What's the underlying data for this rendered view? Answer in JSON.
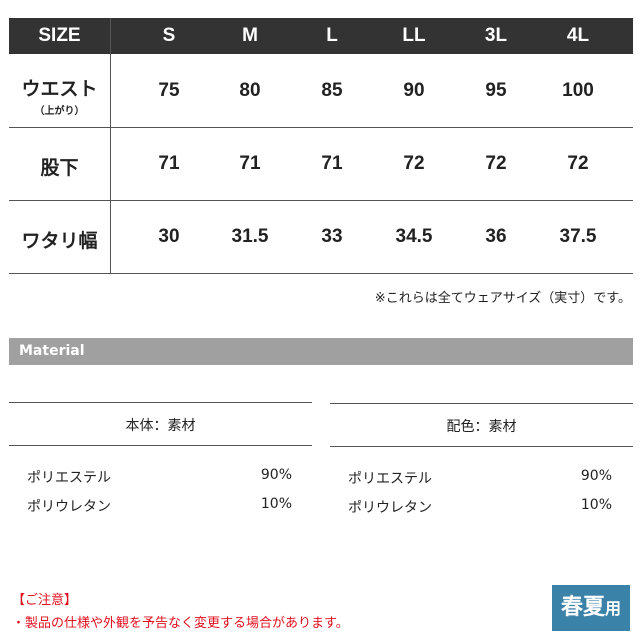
{
  "size_table": {
    "header_label": "SIZE",
    "sizes": [
      "S",
      "M",
      "L",
      "LL",
      "3L",
      "4L"
    ],
    "rows": [
      {
        "label": "ウエスト",
        "sublabel": "（上がり）",
        "values": [
          "75",
          "80",
          "85",
          "90",
          "95",
          "100"
        ]
      },
      {
        "label": "股下",
        "sublabel": "",
        "values": [
          "71",
          "71",
          "71",
          "72",
          "72",
          "72"
        ]
      },
      {
        "label": "ワタリ幅",
        "sublabel": "",
        "values": [
          "30",
          "31.5",
          "33",
          "34.5",
          "36",
          "37.5"
        ]
      }
    ],
    "note": "※これらは全てウェアサイズ（実寸）です。"
  },
  "material": {
    "title": "Material",
    "tables": [
      {
        "heading": "本体：素材",
        "items": [
          {
            "name": "ポリエステル",
            "pct": "90%"
          },
          {
            "name": "ポリウレタン",
            "pct": "10%"
          }
        ]
      },
      {
        "heading": "配色：素材",
        "items": [
          {
            "name": "ポリエステル",
            "pct": "90%"
          },
          {
            "name": "ポリウレタン",
            "pct": "10%"
          }
        ]
      }
    ]
  },
  "caution": {
    "title": "【ご注意】",
    "text": "・製品の仕様や外観を予告なく変更する場合があります。"
  },
  "badge": {
    "main": "春夏",
    "suffix": "用",
    "color": "#3b82a8"
  },
  "colors": {
    "header_bg": "#333333",
    "material_bar": "#a0a0a0",
    "caution": "#e0101e"
  }
}
